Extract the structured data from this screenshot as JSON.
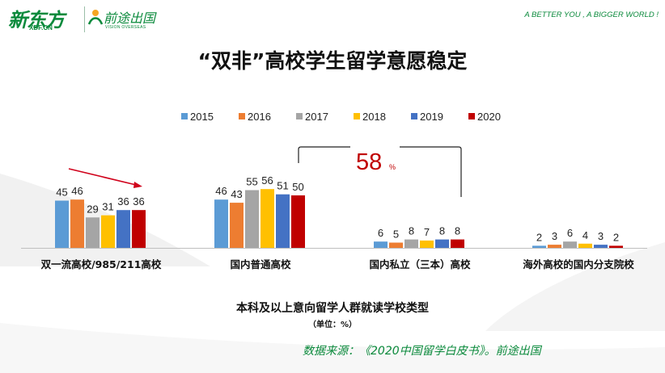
{
  "header": {
    "brand_xdf": "新东方",
    "brand_xdf_sub": "XDF.CN",
    "brand_vision": "前途出国",
    "brand_vision_sub": "VISION OVERSEAS",
    "slogan": "A BETTER YOU , A BIGGER WORLD !"
  },
  "title": "“双非”高校学生留学意愿稳定",
  "x_axis_title": "本科及以上意向留学人群就读学校类型",
  "unit_note": "（单位：%）",
  "source": "数据来源：《2020中国留学白皮书》。前途出国",
  "annotation": {
    "value": "58",
    "unit": "%",
    "color": "#c00000"
  },
  "colors": {
    "brand": "#0b8a3c",
    "arrow": "#d0021b"
  },
  "chart_data": {
    "type": "bar",
    "categories": [
      "双一流高校/985/211高校",
      "国内普通高校",
      "国内私立（三本）高校",
      "海外高校的国内分支院校"
    ],
    "series": [
      {
        "name": "2015",
        "color": "#5b9bd5",
        "values": [
          45,
          46,
          6,
          2
        ]
      },
      {
        "name": "2016",
        "color": "#ed7d31",
        "values": [
          46,
          43,
          5,
          3
        ]
      },
      {
        "name": "2017",
        "color": "#a5a5a5",
        "values": [
          29,
          55,
          8,
          6
        ]
      },
      {
        "name": "2018",
        "color": "#ffc000",
        "values": [
          31,
          56,
          7,
          4
        ]
      },
      {
        "name": "2019",
        "color": "#4472c4",
        "values": [
          36,
          51,
          8,
          3
        ]
      },
      {
        "name": "2020",
        "color": "#c00000",
        "values": [
          36,
          50,
          8,
          2
        ]
      }
    ],
    "ylim": [
      0,
      60
    ],
    "legend": "top",
    "grid": false
  }
}
